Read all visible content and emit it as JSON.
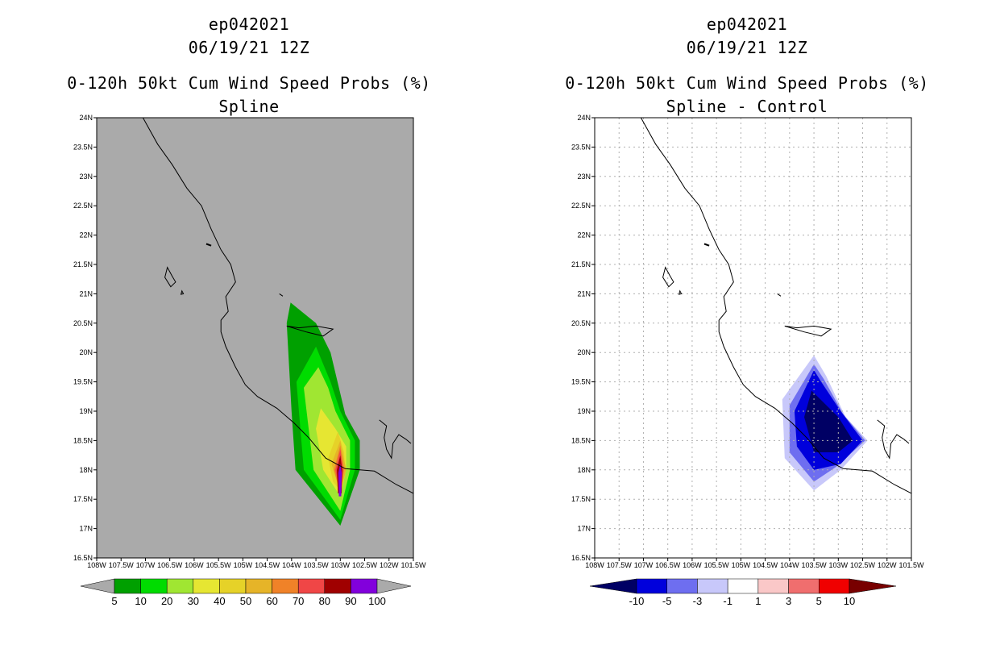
{
  "chart_data": [
    {
      "type": "filled-contour-map",
      "title_lines": [
        "ep042021",
        "06/19/21 12Z",
        "0-120h 50kt Cum Wind Speed Probs (%)",
        "Spline"
      ],
      "x_tick_labels": [
        "108W",
        "107.5W",
        "107W",
        "106.5W",
        "106W",
        "105.5W",
        "105W",
        "104.5W",
        "104W",
        "103.5W",
        "103W",
        "102.5W",
        "102W",
        "101.5W"
      ],
      "y_tick_labels": [
        "16.5N",
        "17N",
        "17.5N",
        "18N",
        "18.5N",
        "19N",
        "19.5N",
        "20N",
        "20.5N",
        "21N",
        "21.5N",
        "22N",
        "22.5N",
        "23N",
        "23.5N",
        "24N"
      ],
      "lon_range": [
        -108,
        -101.5
      ],
      "lat_range": [
        16.5,
        24
      ],
      "grid": false,
      "background_color": "#aaaaaa",
      "colorbar": {
        "labels": [
          "5",
          "10",
          "20",
          "30",
          "40",
          "50",
          "60",
          "70",
          "80",
          "90",
          "100"
        ],
        "colors": [
          "#00a000",
          "#00dc00",
          "#a0e632",
          "#e6e632",
          "#e6d228",
          "#e6b428",
          "#f08228",
          "#f04646",
          "#a00000",
          "#8200dc"
        ],
        "end_colors": [
          "#aaaaaa",
          "#aaaaaa"
        ]
      },
      "contours": [
        {
          "level": 5,
          "color": "#00a000",
          "points": [
            [
              -104.02,
              20.85
            ],
            [
              -104.1,
              20.5
            ],
            [
              -104.0,
              19.0
            ],
            [
              -103.92,
              18.0
            ],
            [
              -103.0,
              17.05
            ],
            [
              -102.6,
              18.0
            ],
            [
              -102.6,
              18.5
            ],
            [
              -102.9,
              18.95
            ],
            [
              -103.2,
              20.0
            ],
            [
              -103.5,
              20.5
            ]
          ]
        },
        {
          "level": 10,
          "color": "#00dc00",
          "points": [
            [
              -103.5,
              20.1
            ],
            [
              -103.9,
              19.5
            ],
            [
              -103.75,
              18.0
            ],
            [
              -103.0,
              17.15
            ],
            [
              -102.7,
              18.0
            ],
            [
              -102.7,
              18.5
            ],
            [
              -103.0,
              19.0
            ],
            [
              -103.2,
              19.5
            ]
          ]
        },
        {
          "level": 20,
          "color": "#a0e632",
          "points": [
            [
              -103.45,
              19.75
            ],
            [
              -103.75,
              19.4
            ],
            [
              -103.55,
              18.0
            ],
            [
              -103.0,
              17.3
            ],
            [
              -102.8,
              18.0
            ],
            [
              -102.8,
              18.5
            ],
            [
              -103.1,
              19.0
            ],
            [
              -103.25,
              19.4
            ]
          ]
        },
        {
          "level": 30,
          "color": "#e6e632",
          "points": [
            [
              -103.4,
              19.05
            ],
            [
              -103.5,
              18.7
            ],
            [
              -103.35,
              18.0
            ],
            [
              -103.0,
              17.55
            ],
            [
              -102.88,
              18.0
            ],
            [
              -102.88,
              18.4
            ],
            [
              -103.1,
              18.7
            ]
          ]
        },
        {
          "level": 40,
          "color": "#e6d228",
          "points": [
            [
              -103.05,
              18.65
            ],
            [
              -103.25,
              18.2
            ],
            [
              -103.15,
              17.8
            ],
            [
              -103.0,
              17.65
            ],
            [
              -102.9,
              17.9
            ],
            [
              -102.92,
              18.3
            ]
          ]
        },
        {
          "level": 50,
          "color": "#e6b428",
          "points": [
            [
              -103.0,
              18.5
            ],
            [
              -103.18,
              18.1
            ],
            [
              -103.0,
              17.62
            ],
            [
              -102.88,
              18.0
            ]
          ]
        },
        {
          "level": 60,
          "color": "#f08228",
          "points": [
            [
              -103.0,
              18.42
            ],
            [
              -103.13,
              18.0
            ],
            [
              -103.0,
              17.6
            ],
            [
              -102.92,
              18.0
            ]
          ]
        },
        {
          "level": 70,
          "color": "#f04646",
          "points": [
            [
              -103.0,
              18.35
            ],
            [
              -103.1,
              18.0
            ],
            [
              -103.0,
              17.58
            ],
            [
              -102.94,
              18.0
            ]
          ]
        },
        {
          "level": 80,
          "color": "#a00000",
          "points": [
            [
              -103.0,
              18.25
            ],
            [
              -103.07,
              18.0
            ],
            [
              -103.05,
              17.6
            ],
            [
              -102.97,
              17.6
            ],
            [
              -102.96,
              18.0
            ]
          ]
        },
        {
          "level": 90,
          "color": "#8200dc",
          "points": [
            [
              -103.0,
              18.1
            ],
            [
              -103.04,
              17.95
            ],
            [
              -103.03,
              17.55
            ],
            [
              -102.98,
              17.55
            ],
            [
              -102.97,
              17.95
            ]
          ]
        }
      ]
    },
    {
      "type": "filled-contour-map",
      "title_lines": [
        "ep042021",
        "06/19/21 12Z",
        "0-120h 50kt Cum Wind Speed Probs (%)",
        "Spline - Control"
      ],
      "x_tick_labels": [
        "108W",
        "107.5W",
        "107W",
        "106.5W",
        "106W",
        "105.5W",
        "105W",
        "104.5W",
        "104W",
        "103.5W",
        "103W",
        "102.5W",
        "102W",
        "101.5W"
      ],
      "y_tick_labels": [
        "16.5N",
        "17N",
        "17.5N",
        "18N",
        "18.5N",
        "19N",
        "19.5N",
        "20N",
        "20.5N",
        "21N",
        "21.5N",
        "22N",
        "22.5N",
        "23N",
        "23.5N",
        "24N"
      ],
      "lon_range": [
        -108,
        -101.5
      ],
      "lat_range": [
        16.5,
        24
      ],
      "grid": true,
      "background_color": "#ffffff",
      "colorbar": {
        "labels": [
          "-10",
          "-5",
          "-3",
          "-1",
          "1",
          "3",
          "5",
          "10"
        ],
        "colors": [
          "#0000dc",
          "#6e6ef0",
          "#c8c8fa",
          "#ffffff",
          "#fac8c8",
          "#f06e6e",
          "#f00000"
        ],
        "end_colors": [
          "#000064",
          "#780000"
        ]
      },
      "contours": [
        {
          "level": -1,
          "color": "#c8c8fa",
          "points": [
            [
              -103.5,
              19.95
            ],
            [
              -104.15,
              19.2
            ],
            [
              -104.1,
              18.2
            ],
            [
              -103.5,
              17.65
            ],
            [
              -102.95,
              18.0
            ],
            [
              -102.4,
              18.5
            ],
            [
              -102.85,
              18.9
            ],
            [
              -103.25,
              19.6
            ]
          ]
        },
        {
          "level": -3,
          "color": "#6e6ef0",
          "points": [
            [
              -103.5,
              19.8
            ],
            [
              -104.0,
              19.1
            ],
            [
              -104.0,
              18.3
            ],
            [
              -103.5,
              17.8
            ],
            [
              -103.05,
              18.05
            ],
            [
              -102.45,
              18.5
            ],
            [
              -102.9,
              18.95
            ],
            [
              -103.3,
              19.55
            ]
          ]
        },
        {
          "level": -5,
          "color": "#0000dc",
          "points": [
            [
              -103.5,
              19.7
            ],
            [
              -103.9,
              19.0
            ],
            [
              -103.85,
              18.4
            ],
            [
              -103.5,
              18.0
            ],
            [
              -102.95,
              18.1
            ],
            [
              -102.5,
              18.5
            ],
            [
              -102.95,
              19.0
            ],
            [
              -103.35,
              19.5
            ]
          ]
        },
        {
          "level": -10,
          "color": "#000064",
          "points": [
            [
              -103.55,
              19.35
            ],
            [
              -103.7,
              18.9
            ],
            [
              -103.5,
              18.3
            ],
            [
              -103.0,
              18.3
            ],
            [
              -102.7,
              18.5
            ],
            [
              -103.0,
              18.9
            ]
          ]
        }
      ]
    }
  ]
}
